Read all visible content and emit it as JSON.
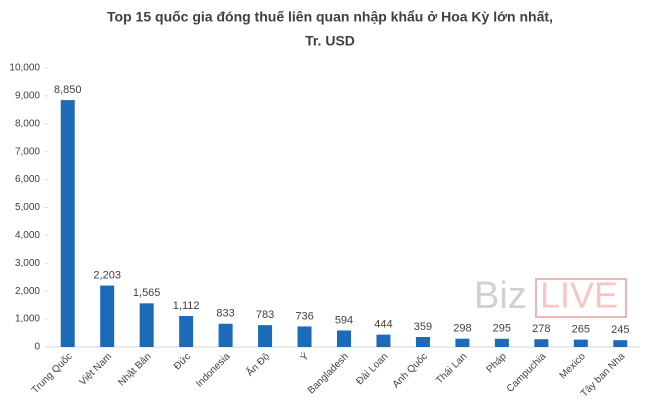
{
  "chart_data": {
    "type": "bar",
    "title": [
      "Top 15 quốc gia đóng thuế liên quan nhập khẩu ở Hoa Kỳ lớn nhất,",
      "Tr. USD"
    ],
    "categories": [
      "Trung Quốc",
      "Việt Nam",
      "Nhật Bản",
      "Đức",
      "Indonesia",
      "Ấn Độ",
      "Ý",
      "Bangladesh",
      "Đài Loan",
      "Anh Quốc",
      "Thái Lan",
      "Pháp",
      "Campuchia",
      "Mexico",
      "Tây ban Nha"
    ],
    "values": [
      8850,
      2203,
      1565,
      1112,
      833,
      783,
      736,
      594,
      444,
      359,
      298,
      295,
      278,
      265,
      245
    ],
    "value_labels": [
      "8,850",
      "2,203",
      "1,565",
      "1,112",
      "833",
      "783",
      "736",
      "594",
      "444",
      "359",
      "298",
      "295",
      "278",
      "265",
      "245"
    ],
    "color": "#1b6bb8",
    "ylim": [
      0,
      10000
    ],
    "yticks": [
      0,
      {
        "value": 1000,
        "label": "1,000"
      },
      {
        "value": 2000,
        "label": "2,000"
      },
      {
        "value": 3000,
        "label": "3,000"
      },
      {
        "value": 4000,
        "label": "4,000"
      },
      {
        "value": 5000,
        "label": "5,000"
      },
      {
        "value": 6000,
        "label": "6,000"
      },
      {
        "value": 7000,
        "label": "7,000"
      },
      {
        "value": 8000,
        "label": "8,000"
      },
      {
        "value": 9000,
        "label": "9,000"
      },
      {
        "value": 10000,
        "label": "10,000"
      }
    ],
    "grid": false,
    "watermark": [
      "Biz",
      "LIVE"
    ]
  }
}
